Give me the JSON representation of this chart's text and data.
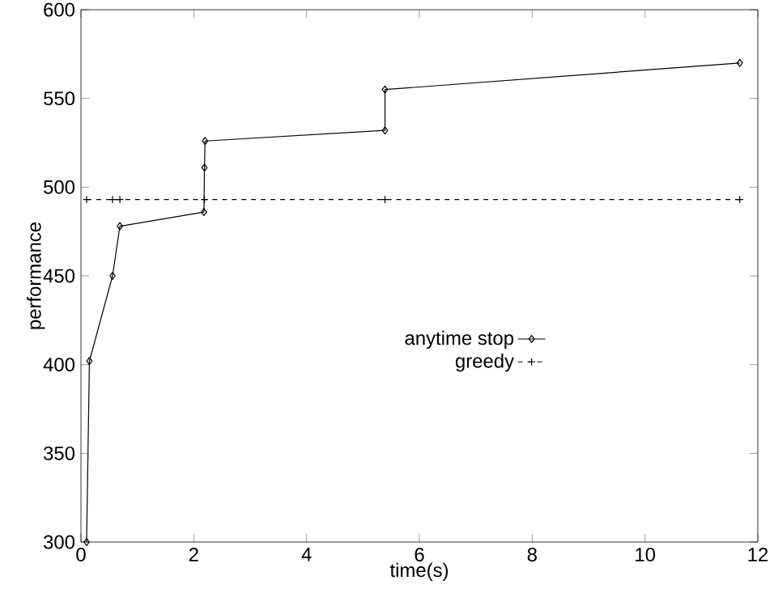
{
  "chart_data": {
    "type": "line",
    "xlabel": "time(s)",
    "ylabel": "performance",
    "xlim": [
      0,
      12
    ],
    "xticks": [
      0,
      2,
      4,
      6,
      8,
      10,
      12
    ],
    "ylim": [
      300,
      600
    ],
    "yticks": [
      300,
      350,
      400,
      450,
      500,
      550,
      600
    ],
    "grid": false,
    "legend": "center",
    "series": [
      {
        "name": "anytime stop",
        "color": "#000000",
        "marker": "diamond",
        "line_style": "solid",
        "x": [
          0.1,
          0.15,
          0.56,
          0.69,
          2.18,
          2.19,
          2.2,
          5.39,
          5.39,
          11.68
        ],
        "values": [
          300,
          402,
          450,
          478,
          486,
          511,
          526,
          532,
          555,
          570
        ]
      },
      {
        "name": "greedy",
        "color": "#000000",
        "marker": "cross",
        "line_style": "dashed",
        "x": [
          0.1,
          0.56,
          0.69,
          2.19,
          5.39,
          11.68
        ],
        "values": [
          493,
          493,
          493,
          493,
          493,
          493
        ]
      }
    ]
  }
}
